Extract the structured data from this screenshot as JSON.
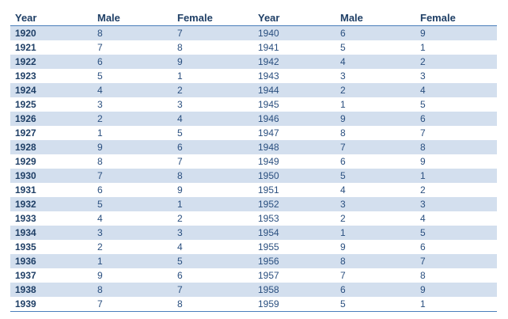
{
  "table": {
    "headers": [
      "Year",
      "Male",
      "Female",
      "Year",
      "Male",
      "Female"
    ],
    "rows": [
      [
        "1920",
        "8",
        "7",
        "1940",
        "6",
        "9"
      ],
      [
        "1921",
        "7",
        "8",
        "1941",
        "5",
        "1"
      ],
      [
        "1922",
        "6",
        "9",
        "1942",
        "4",
        "2"
      ],
      [
        "1923",
        "5",
        "1",
        "1943",
        "3",
        "3"
      ],
      [
        "1924",
        "4",
        "2",
        "1944",
        "2",
        "4"
      ],
      [
        "1925",
        "3",
        "3",
        "1945",
        "1",
        "5"
      ],
      [
        "1926",
        "2",
        "4",
        "1946",
        "9",
        "6"
      ],
      [
        "1927",
        "1",
        "5",
        "1947",
        "8",
        "7"
      ],
      [
        "1928",
        "9",
        "6",
        "1948",
        "7",
        "8"
      ],
      [
        "1929",
        "8",
        "7",
        "1949",
        "6",
        "9"
      ],
      [
        "1930",
        "7",
        "8",
        "1950",
        "5",
        "1"
      ],
      [
        "1931",
        "6",
        "9",
        "1951",
        "4",
        "2"
      ],
      [
        "1932",
        "5",
        "1",
        "1952",
        "3",
        "3"
      ],
      [
        "1933",
        "4",
        "2",
        "1953",
        "2",
        "4"
      ],
      [
        "1934",
        "3",
        "3",
        "1954",
        "1",
        "5"
      ],
      [
        "1935",
        "2",
        "4",
        "1955",
        "9",
        "6"
      ],
      [
        "1936",
        "1",
        "5",
        "1956",
        "8",
        "7"
      ],
      [
        "1937",
        "9",
        "6",
        "1957",
        "7",
        "8"
      ],
      [
        "1938",
        "8",
        "7",
        "1958",
        "6",
        "9"
      ],
      [
        "1939",
        "7",
        "8",
        "1959",
        "5",
        "1"
      ]
    ]
  },
  "colors": {
    "band": "#d3dfee",
    "rule": "#4a7ebb",
    "text": "#1f3f66"
  }
}
